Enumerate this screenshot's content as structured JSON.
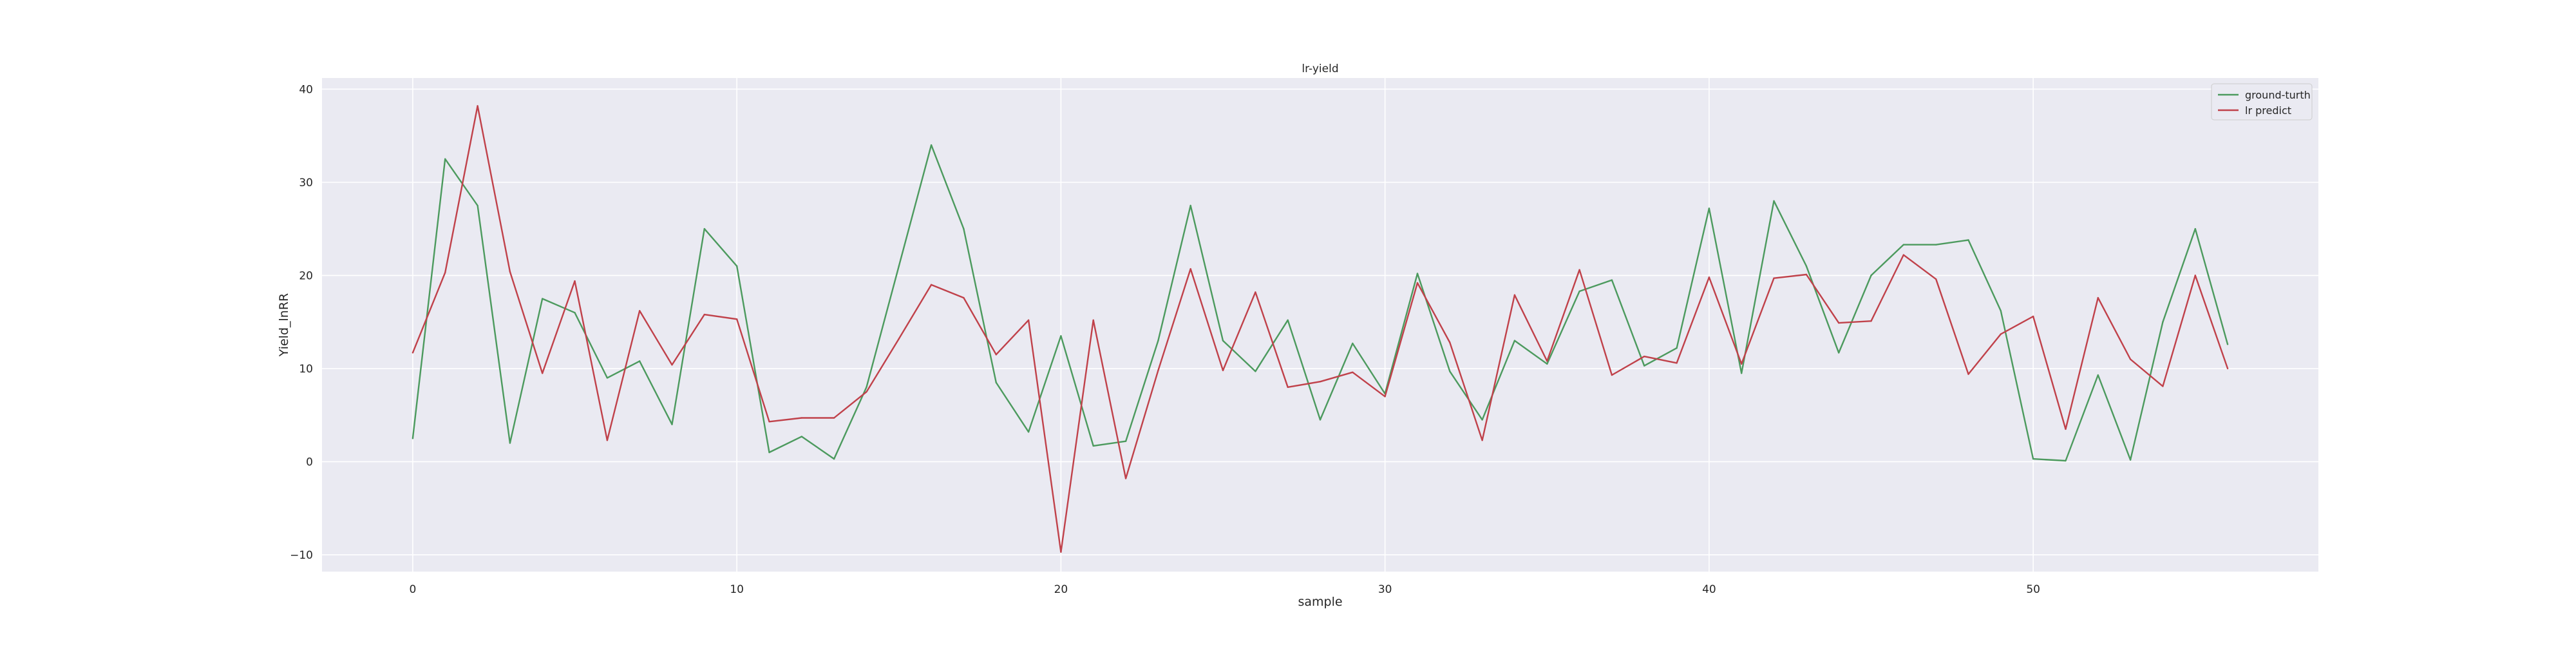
{
  "chart_data": {
    "type": "line",
    "title": "lr-yield",
    "xlabel": "sample",
    "ylabel": "Yield_lnRR",
    "xlim": [
      -2.8,
      58.8
    ],
    "ylim": [
      -11.8,
      41.2
    ],
    "xticks": [
      0,
      10,
      20,
      30,
      40,
      50
    ],
    "yticks": [
      -10,
      0,
      10,
      20,
      30,
      40
    ],
    "xtick_labels": [
      "0",
      "10",
      "20",
      "30",
      "40",
      "50"
    ],
    "ytick_labels": [
      "−10",
      "0",
      "10",
      "20",
      "30",
      "40"
    ],
    "grid": true,
    "legend_position": "top-right",
    "background_color": "#eaeaf2",
    "grid_color": "#ffffff",
    "series": [
      {
        "name": "ground-turth",
        "color": "#4c9a5e",
        "x": [
          0,
          1,
          2,
          3,
          4,
          5,
          6,
          7,
          8,
          9,
          10,
          11,
          12,
          13,
          14,
          15,
          16,
          17,
          18,
          19,
          20,
          21,
          22,
          23,
          24,
          25,
          26,
          27,
          28,
          29,
          30,
          31,
          32,
          33,
          34,
          35,
          36,
          37,
          38,
          39,
          40,
          41,
          42,
          43,
          44,
          45,
          46,
          47,
          48,
          49,
          50,
          51,
          52,
          53,
          54,
          55,
          56
        ],
        "values": [
          2.5,
          32.5,
          27.5,
          2,
          17.5,
          16,
          9,
          10.8,
          4,
          25,
          21,
          1,
          2.7,
          0.3,
          8,
          21,
          34,
          25,
          8.5,
          3.2,
          13.5,
          1.7,
          2.2,
          13,
          27.5,
          13,
          9.7,
          15.2,
          4.5,
          12.7,
          7.3,
          20.2,
          9.7,
          4.5,
          13,
          10.5,
          18.3,
          19.5,
          10.3,
          12.2,
          27.2,
          9.5,
          28,
          21,
          11.7,
          20,
          23.3,
          23.3,
          23.8,
          16.2,
          0.3,
          0.1,
          9.3,
          0.2,
          15,
          25,
          12.6
        ]
      },
      {
        "name": "lr predict",
        "color": "#c0414a",
        "x": [
          0,
          1,
          2,
          3,
          4,
          5,
          6,
          7,
          8,
          9,
          10,
          11,
          12,
          13,
          14,
          15,
          16,
          17,
          18,
          19,
          20,
          21,
          22,
          23,
          24,
          25,
          26,
          27,
          28,
          29,
          30,
          31,
          32,
          33,
          34,
          35,
          36,
          37,
          38,
          39,
          40,
          41,
          42,
          43,
          44,
          45,
          46,
          47,
          48,
          49,
          50,
          51,
          52,
          53,
          54,
          55,
          56
        ],
        "values": [
          11.7,
          20.3,
          38.2,
          20.4,
          9.5,
          19.4,
          2.3,
          16.2,
          10.4,
          15.8,
          15.3,
          4.3,
          4.7,
          4.7,
          7.5,
          13.2,
          19,
          17.6,
          11.5,
          15.2,
          -9.7,
          15.2,
          -1.8,
          9.8,
          20.7,
          9.8,
          18.2,
          8,
          8.6,
          9.6,
          7,
          19.2,
          12.8,
          2.3,
          17.9,
          10.8,
          20.6,
          9.3,
          11.3,
          10.6,
          19.8,
          10.5,
          19.7,
          20.1,
          14.9,
          15.1,
          22.2,
          19.6,
          9.4,
          13.7,
          15.6,
          3.5,
          17.6,
          11,
          8.1,
          20,
          10
        ]
      }
    ]
  }
}
